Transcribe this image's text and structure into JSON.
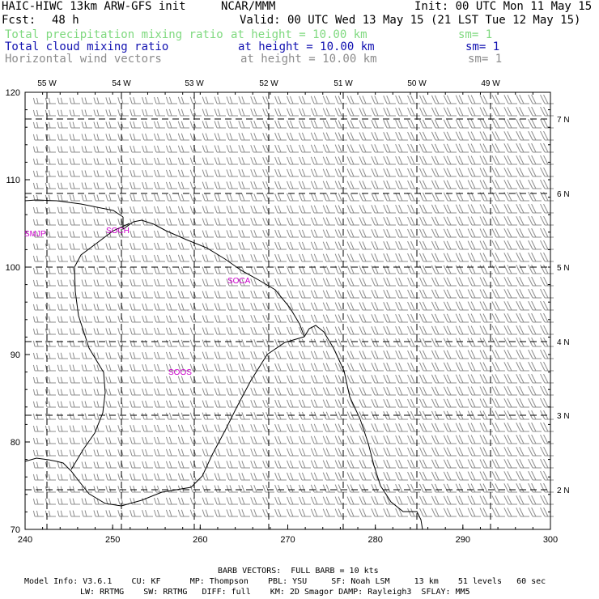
{
  "header": {
    "model_name": "HAIC-HIWC 13km ARW-GFS init",
    "org": "NCAR/MMM",
    "init_time": "Init: 00 UTC Mon 11 May 15",
    "forecast_label": "Fcst:",
    "forecast_hours": "48 h",
    "valid_time": "Valid: 00 UTC Wed 13 May 15 (21 LST Tue 12 May 15)"
  },
  "fields": [
    {
      "name": "Total precipitation mixing ratio",
      "height": "at height = 10.00 km",
      "smooth": "sm= 1",
      "color": "#7fd97f"
    },
    {
      "name": "Total cloud mixing ratio",
      "height": "at height = 10.00 km",
      "smooth": "sm= 1",
      "color": "#1010b0"
    },
    {
      "name": "Horizontal wind vectors",
      "height": "at height = 10.00 km",
      "smooth": "sm= 1",
      "color": "#8c8c8c"
    }
  ],
  "map": {
    "x_ticks": [
      "240",
      "250",
      "260",
      "270",
      "280",
      "290",
      "300"
    ],
    "y_ticks": [
      "70",
      "80",
      "90",
      "100",
      "110",
      "120"
    ],
    "lon_labels": [
      "55 W",
      "54 W",
      "53 W",
      "52 W",
      "51 W",
      "50 W",
      "49 W"
    ],
    "lat_labels": [
      "7 N",
      "6 N",
      "5 N",
      "4 N",
      "3 N",
      "2 N"
    ],
    "stations": [
      {
        "id": "SMJP"
      },
      {
        "id": "SOCH"
      },
      {
        "id": "SOCA"
      },
      {
        "id": "SOOS"
      }
    ],
    "station_color": "#cc00cc",
    "coast_color": "#000000",
    "barb_color": "#8c8c8c"
  },
  "footer": {
    "barb_note": "BARB VECTORS:  FULL BARB = 10 kts",
    "line1": "Model Info: V3.6.1    CU: KF      MP: Thompson    PBL: YSU     SF: Noah LSM     13 km    51 levels   60 sec",
    "line2": "LW: RRTMG    SW: RRTMG   DIFF: full    KM: 2D Smagor DAMP: Rayleigh3  SFLAY: MM5"
  }
}
